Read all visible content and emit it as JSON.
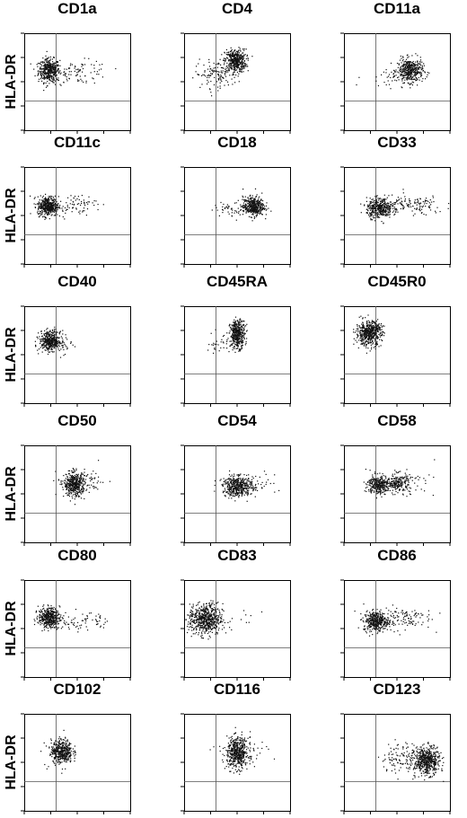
{
  "figure": {
    "y_axis_label": "HLA-DR",
    "panels": [
      {
        "id": "cd1a",
        "title": "CD1a"
      },
      {
        "id": "cd4",
        "title": "CD4"
      },
      {
        "id": "cd11a",
        "title": "CD11a"
      },
      {
        "id": "cd11c",
        "title": "CD11c"
      },
      {
        "id": "cd18",
        "title": "CD18"
      },
      {
        "id": "cd33",
        "title": "CD33"
      },
      {
        "id": "cd40",
        "title": "CD40"
      },
      {
        "id": "cd45ra",
        "title": "CD45RA"
      },
      {
        "id": "cd45r0",
        "title": "CD45R0"
      },
      {
        "id": "cd50",
        "title": "CD50"
      },
      {
        "id": "cd54",
        "title": "CD54"
      },
      {
        "id": "cd58",
        "title": "CD58"
      },
      {
        "id": "cd80",
        "title": "CD80"
      },
      {
        "id": "cd83",
        "title": "CD83"
      },
      {
        "id": "cd86",
        "title": "CD86"
      },
      {
        "id": "cd102",
        "title": "CD102"
      },
      {
        "id": "cd116",
        "title": "CD116"
      },
      {
        "id": "cd123",
        "title": "CD123"
      }
    ]
  },
  "chart_data": {
    "type": "scatter",
    "layout": "grid 6 rows x 3 columns of flow cytometry dot plots",
    "y_axis_label": "HLA-DR",
    "axis_range": [
      0,
      1
    ],
    "quadrant_gate": {
      "x": 0.3,
      "y": 0.3
    },
    "panels": [
      {
        "title": "CD1a",
        "clusters": [
          {
            "cx": 0.23,
            "cy": 0.62,
            "sx": 0.05,
            "sy": 0.06,
            "n": 420
          },
          {
            "cx": 0.52,
            "cy": 0.6,
            "sx": 0.14,
            "sy": 0.06,
            "n": 90
          }
        ]
      },
      {
        "title": "CD4",
        "clusters": [
          {
            "cx": 0.48,
            "cy": 0.72,
            "sx": 0.05,
            "sy": 0.06,
            "n": 420
          },
          {
            "cx": 0.3,
            "cy": 0.58,
            "sx": 0.1,
            "sy": 0.07,
            "n": 120
          }
        ]
      },
      {
        "title": "CD11a",
        "clusters": [
          {
            "cx": 0.62,
            "cy": 0.62,
            "sx": 0.06,
            "sy": 0.06,
            "n": 420
          },
          {
            "cx": 0.42,
            "cy": 0.55,
            "sx": 0.12,
            "sy": 0.05,
            "n": 40
          }
        ]
      },
      {
        "title": "CD11c",
        "clusters": [
          {
            "cx": 0.22,
            "cy": 0.6,
            "sx": 0.05,
            "sy": 0.05,
            "n": 420
          },
          {
            "cx": 0.48,
            "cy": 0.62,
            "sx": 0.1,
            "sy": 0.05,
            "n": 70
          }
        ]
      },
      {
        "title": "CD18",
        "clusters": [
          {
            "cx": 0.65,
            "cy": 0.6,
            "sx": 0.05,
            "sy": 0.05,
            "n": 400
          },
          {
            "cx": 0.48,
            "cy": 0.58,
            "sx": 0.1,
            "sy": 0.04,
            "n": 60
          }
        ]
      },
      {
        "title": "CD33",
        "clusters": [
          {
            "cx": 0.33,
            "cy": 0.58,
            "sx": 0.06,
            "sy": 0.05,
            "n": 380
          },
          {
            "cx": 0.62,
            "cy": 0.61,
            "sx": 0.16,
            "sy": 0.05,
            "n": 140
          }
        ]
      },
      {
        "title": "CD40",
        "clusters": [
          {
            "cx": 0.24,
            "cy": 0.65,
            "sx": 0.05,
            "sy": 0.05,
            "n": 400
          },
          {
            "cx": 0.32,
            "cy": 0.6,
            "sx": 0.06,
            "sy": 0.05,
            "n": 50
          }
        ]
      },
      {
        "title": "CD45RA",
        "clusters": [
          {
            "cx": 0.5,
            "cy": 0.72,
            "sx": 0.035,
            "sy": 0.07,
            "n": 400
          },
          {
            "cx": 0.36,
            "cy": 0.62,
            "sx": 0.08,
            "sy": 0.06,
            "n": 40
          }
        ]
      },
      {
        "title": "CD45R0",
        "clusters": [
          {
            "cx": 0.23,
            "cy": 0.72,
            "sx": 0.06,
            "sy": 0.06,
            "n": 480
          },
          {
            "cx": 0.28,
            "cy": 0.8,
            "sx": 0.05,
            "sy": 0.04,
            "n": 60
          }
        ]
      },
      {
        "title": "CD50",
        "clusters": [
          {
            "cx": 0.47,
            "cy": 0.6,
            "sx": 0.05,
            "sy": 0.06,
            "n": 400
          },
          {
            "cx": 0.55,
            "cy": 0.62,
            "sx": 0.12,
            "sy": 0.07,
            "n": 80
          }
        ]
      },
      {
        "title": "CD54",
        "clusters": [
          {
            "cx": 0.5,
            "cy": 0.58,
            "sx": 0.07,
            "sy": 0.05,
            "n": 420
          },
          {
            "cx": 0.58,
            "cy": 0.6,
            "sx": 0.14,
            "sy": 0.06,
            "n": 70
          }
        ]
      },
      {
        "title": "CD58",
        "clusters": [
          {
            "cx": 0.32,
            "cy": 0.6,
            "sx": 0.05,
            "sy": 0.05,
            "n": 300
          },
          {
            "cx": 0.5,
            "cy": 0.62,
            "sx": 0.06,
            "sy": 0.05,
            "n": 200
          },
          {
            "cx": 0.62,
            "cy": 0.6,
            "sx": 0.12,
            "sy": 0.06,
            "n": 40
          }
        ]
      },
      {
        "title": "CD80",
        "clusters": [
          {
            "cx": 0.23,
            "cy": 0.62,
            "sx": 0.05,
            "sy": 0.05,
            "n": 400
          },
          {
            "cx": 0.5,
            "cy": 0.58,
            "sx": 0.15,
            "sy": 0.05,
            "n": 80
          }
        ]
      },
      {
        "title": "CD83",
        "clusters": [
          {
            "cx": 0.2,
            "cy": 0.6,
            "sx": 0.08,
            "sy": 0.08,
            "n": 600
          },
          {
            "cx": 0.6,
            "cy": 0.6,
            "sx": 0.12,
            "sy": 0.06,
            "n": 8
          }
        ]
      },
      {
        "title": "CD86",
        "clusters": [
          {
            "cx": 0.3,
            "cy": 0.58,
            "sx": 0.06,
            "sy": 0.05,
            "n": 380
          },
          {
            "cx": 0.55,
            "cy": 0.62,
            "sx": 0.14,
            "sy": 0.06,
            "n": 110
          }
        ]
      },
      {
        "title": "CD102",
        "clusters": [
          {
            "cx": 0.35,
            "cy": 0.62,
            "sx": 0.05,
            "sy": 0.06,
            "n": 400
          },
          {
            "cx": 0.3,
            "cy": 0.58,
            "sx": 0.08,
            "sy": 0.06,
            "n": 30
          }
        ]
      },
      {
        "title": "CD116",
        "clusters": [
          {
            "cx": 0.5,
            "cy": 0.6,
            "sx": 0.05,
            "sy": 0.08,
            "n": 460
          },
          {
            "cx": 0.52,
            "cy": 0.6,
            "sx": 0.12,
            "sy": 0.08,
            "n": 80
          }
        ]
      },
      {
        "title": "CD123",
        "clusters": [
          {
            "cx": 0.78,
            "cy": 0.52,
            "sx": 0.06,
            "sy": 0.07,
            "n": 500
          },
          {
            "cx": 0.58,
            "cy": 0.55,
            "sx": 0.12,
            "sy": 0.08,
            "n": 140
          }
        ]
      }
    ]
  }
}
